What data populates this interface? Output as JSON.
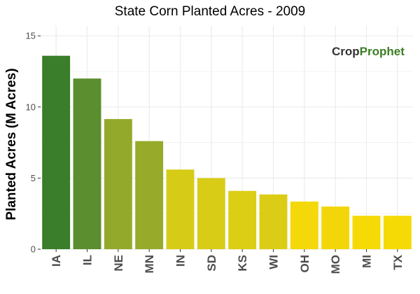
{
  "chart_data": {
    "type": "bar",
    "title": "State Corn Planted Acres - 2009",
    "xlabel": "",
    "ylabel": "Planted Acres (M Acres)",
    "categories": [
      "IA",
      "IL",
      "NE",
      "MN",
      "IN",
      "SD",
      "KS",
      "WI",
      "OH",
      "MO",
      "MI",
      "TX"
    ],
    "values": [
      13.6,
      12.0,
      9.15,
      7.6,
      5.6,
      5.0,
      4.1,
      3.85,
      3.35,
      3.0,
      2.35,
      2.35
    ],
    "ylim": [
      0,
      15.7
    ],
    "yticks": [
      0,
      5,
      10,
      15
    ],
    "ytick_labels": [
      "0",
      "5",
      "10",
      "15"
    ],
    "grid": true,
    "legend": "none",
    "colors": [
      "#3a7d2a",
      "#5b8e2e",
      "#93a92b",
      "#98aa2a",
      "#d6cc17",
      "#d8cc17",
      "#dbce15",
      "#dbcd15",
      "#f4d80a",
      "#f3d60a",
      "#f5da05",
      "#f6da06"
    ],
    "grid_color": "#ebebeb",
    "background_color": "#ffffff"
  },
  "watermark": {
    "text_crop": "Crop",
    "text_prophet": "Prophet",
    "crop_color": "#333333",
    "prophet_color": "#3b7d23"
  }
}
